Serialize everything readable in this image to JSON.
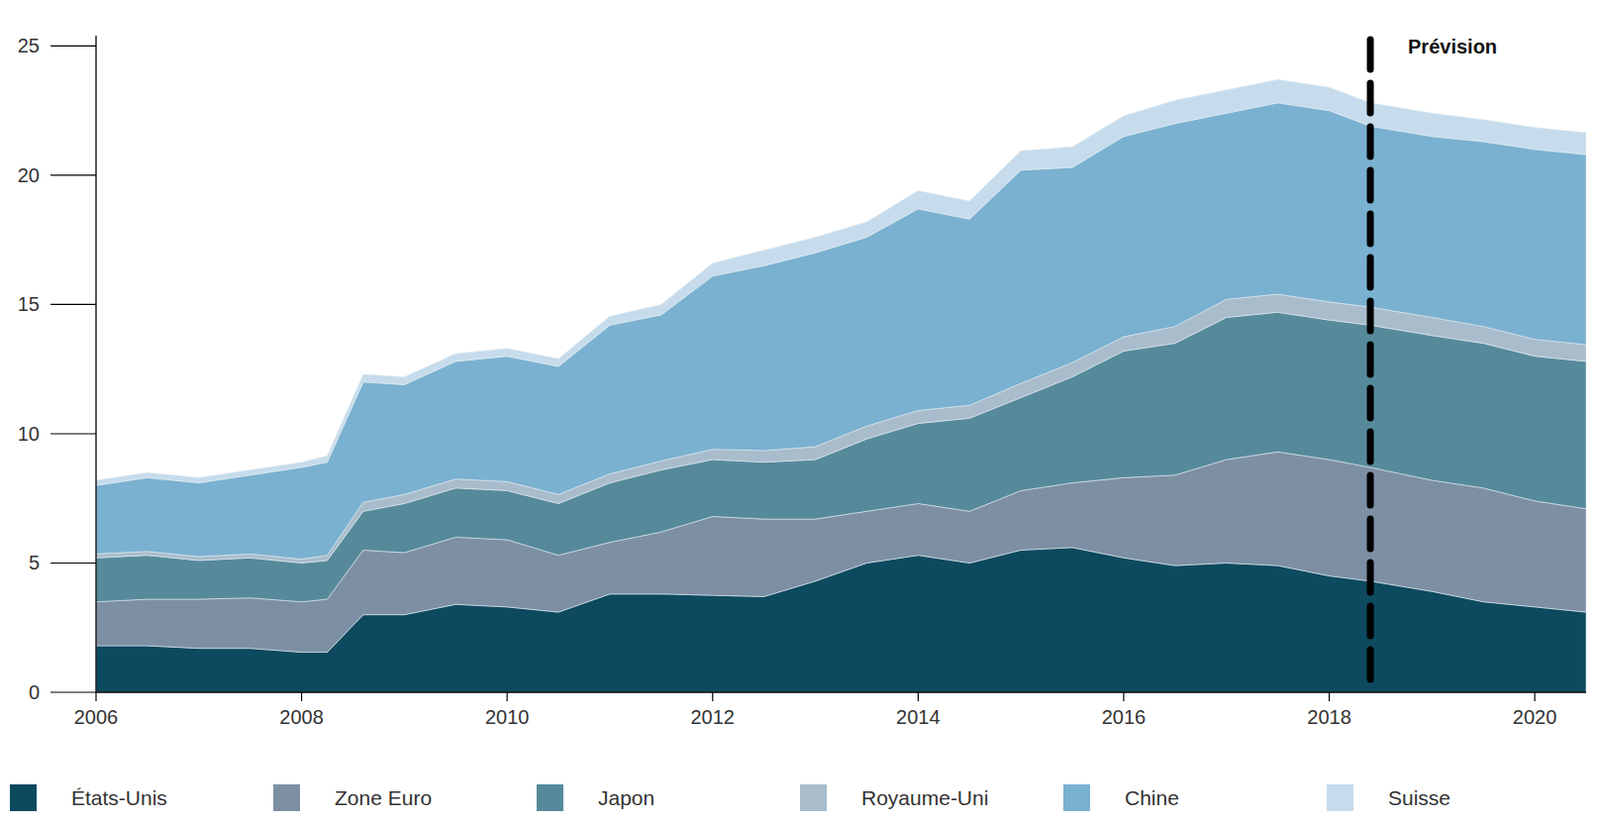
{
  "chart_data": {
    "type": "area",
    "stacked": true,
    "x": [
      2006,
      2006.5,
      2007,
      2007.5,
      2008,
      2008.25,
      2008.6,
      2009,
      2009.5,
      2010,
      2010.5,
      2011,
      2011.5,
      2012,
      2012.5,
      2013,
      2013.5,
      2014,
      2014.5,
      2015,
      2015.5,
      2016,
      2016.5,
      2017,
      2017.5,
      2018,
      2018.4,
      2019,
      2019.5,
      2020,
      2020.5
    ],
    "xlim": [
      2006,
      2020.5
    ],
    "xticks": [
      2006,
      2008,
      2010,
      2012,
      2014,
      2016,
      2018,
      2020
    ],
    "ylim": [
      0,
      25.4
    ],
    "yticks": [
      0,
      5,
      10,
      15,
      20,
      25
    ],
    "grid": false,
    "legend": "bottom",
    "annotations": [
      {
        "x": 2018.4,
        "text": "Prévision"
      }
    ],
    "series": [
      {
        "name": "États-Unis",
        "color": "#0d4a5f",
        "values": [
          1.8,
          1.8,
          1.7,
          1.7,
          1.55,
          1.55,
          3.0,
          3.0,
          3.4,
          3.3,
          3.1,
          3.8,
          3.8,
          3.75,
          3.7,
          4.3,
          5.0,
          5.3,
          5.0,
          5.5,
          5.6,
          5.2,
          4.9,
          5.0,
          4.9,
          4.5,
          4.3,
          3.9,
          3.5,
          3.3,
          3.1
        ]
      },
      {
        "name": "Zone Euro",
        "color": "#7d8fa3",
        "values": [
          1.7,
          1.8,
          1.9,
          1.95,
          1.95,
          2.05,
          2.5,
          2.4,
          2.6,
          2.6,
          2.2,
          2.0,
          2.4,
          3.05,
          3.0,
          2.4,
          2.0,
          2.0,
          2.0,
          2.3,
          2.5,
          3.1,
          3.5,
          4.0,
          4.4,
          4.5,
          4.4,
          4.3,
          4.4,
          4.1,
          4.0
        ]
      },
      {
        "name": "Japon",
        "color": "#568a9b",
        "values": [
          1.7,
          1.7,
          1.5,
          1.55,
          1.5,
          1.5,
          1.5,
          1.9,
          1.9,
          1.9,
          2.0,
          2.3,
          2.4,
          2.2,
          2.2,
          2.3,
          2.8,
          3.1,
          3.6,
          3.6,
          4.1,
          4.9,
          5.1,
          5.5,
          5.4,
          5.4,
          5.5,
          5.6,
          5.6,
          5.6,
          5.7
        ]
      },
      {
        "name": "Royaume-Uni",
        "color": "#a9bccb",
        "values": [
          0.15,
          0.15,
          0.15,
          0.15,
          0.15,
          0.2,
          0.35,
          0.35,
          0.35,
          0.35,
          0.35,
          0.35,
          0.35,
          0.4,
          0.45,
          0.5,
          0.5,
          0.5,
          0.5,
          0.55,
          0.55,
          0.55,
          0.65,
          0.7,
          0.7,
          0.7,
          0.7,
          0.7,
          0.65,
          0.65,
          0.65
        ]
      },
      {
        "name": "Chine",
        "color": "#7ab1d0",
        "values": [
          2.65,
          2.85,
          2.85,
          3.05,
          3.55,
          3.6,
          4.65,
          4.25,
          4.55,
          4.85,
          4.95,
          5.75,
          5.65,
          6.7,
          7.15,
          7.5,
          7.3,
          7.8,
          7.2,
          8.25,
          7.55,
          7.75,
          7.85,
          7.2,
          7.4,
          7.4,
          7.0,
          7.0,
          7.15,
          7.35,
          7.35
        ]
      },
      {
        "name": "Suisse",
        "color": "#c6dcec",
        "values": [
          0.2,
          0.2,
          0.2,
          0.2,
          0.2,
          0.25,
          0.3,
          0.3,
          0.3,
          0.3,
          0.3,
          0.35,
          0.4,
          0.5,
          0.6,
          0.6,
          0.6,
          0.7,
          0.7,
          0.75,
          0.8,
          0.8,
          0.9,
          0.9,
          0.9,
          0.9,
          0.9,
          0.9,
          0.85,
          0.85,
          0.85
        ]
      }
    ]
  }
}
